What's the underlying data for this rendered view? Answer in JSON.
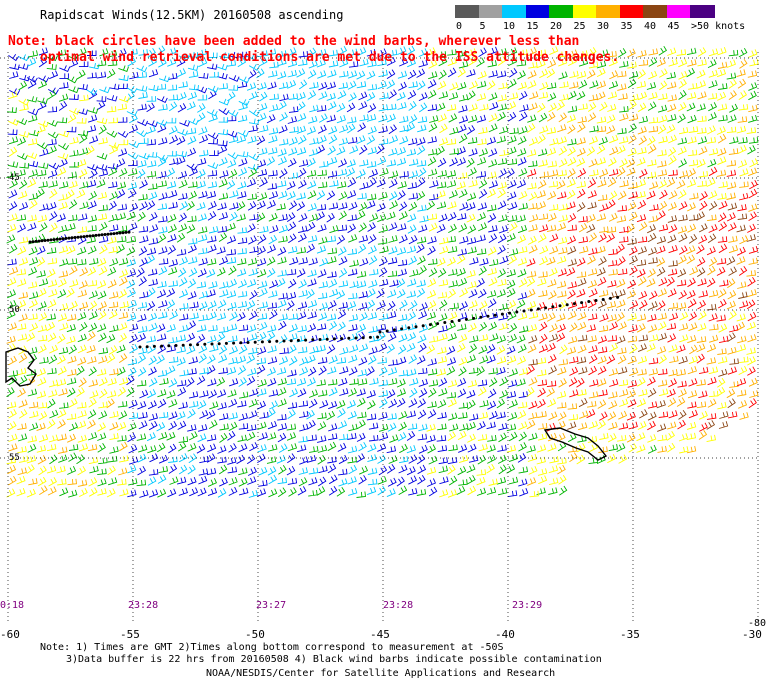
{
  "title": "Rapidscat Winds(12.5KM) 20160508 ascending",
  "note": {
    "line1": "Note: black circles have been added to the wind barbs, wherever less than",
    "line2": "optimal wind retrieval conditions are met due to the ISS attitude changes."
  },
  "colorbar": {
    "labels": [
      "0",
      "5",
      "10",
      "15",
      "20",
      "25",
      "30",
      "35",
      "40",
      "45",
      ">50 knots"
    ],
    "colors": [
      "#5a5a5a",
      "#a0a0a0",
      "#00c8ff",
      "#0000e0",
      "#00b400",
      "#ffff00",
      "#ffb000",
      "#ff0000",
      "#8b4513",
      "#ff00ff",
      "#4b0082"
    ]
  },
  "map": {
    "lon_ticks": [
      "-60",
      "-55",
      "-50",
      "-45",
      "-40",
      "-35",
      "-30"
    ],
    "lat_labels": [
      "45",
      "50",
      "55"
    ],
    "lat_bottom": "-80",
    "times": [
      "0:18",
      "23:28",
      "23:27",
      "23:28",
      "23:29"
    ]
  },
  "footer": {
    "line1": "Note: 1) Times are GMT 2)Times along bottom correspond to measurement at -50S",
    "line2": "3)Data buffer is 22 hrs from 20160508 4) Black wind barbs indicate possible contamination",
    "line3": "NOAA/NESDIS/Center for Satellite Applications and Research"
  }
}
